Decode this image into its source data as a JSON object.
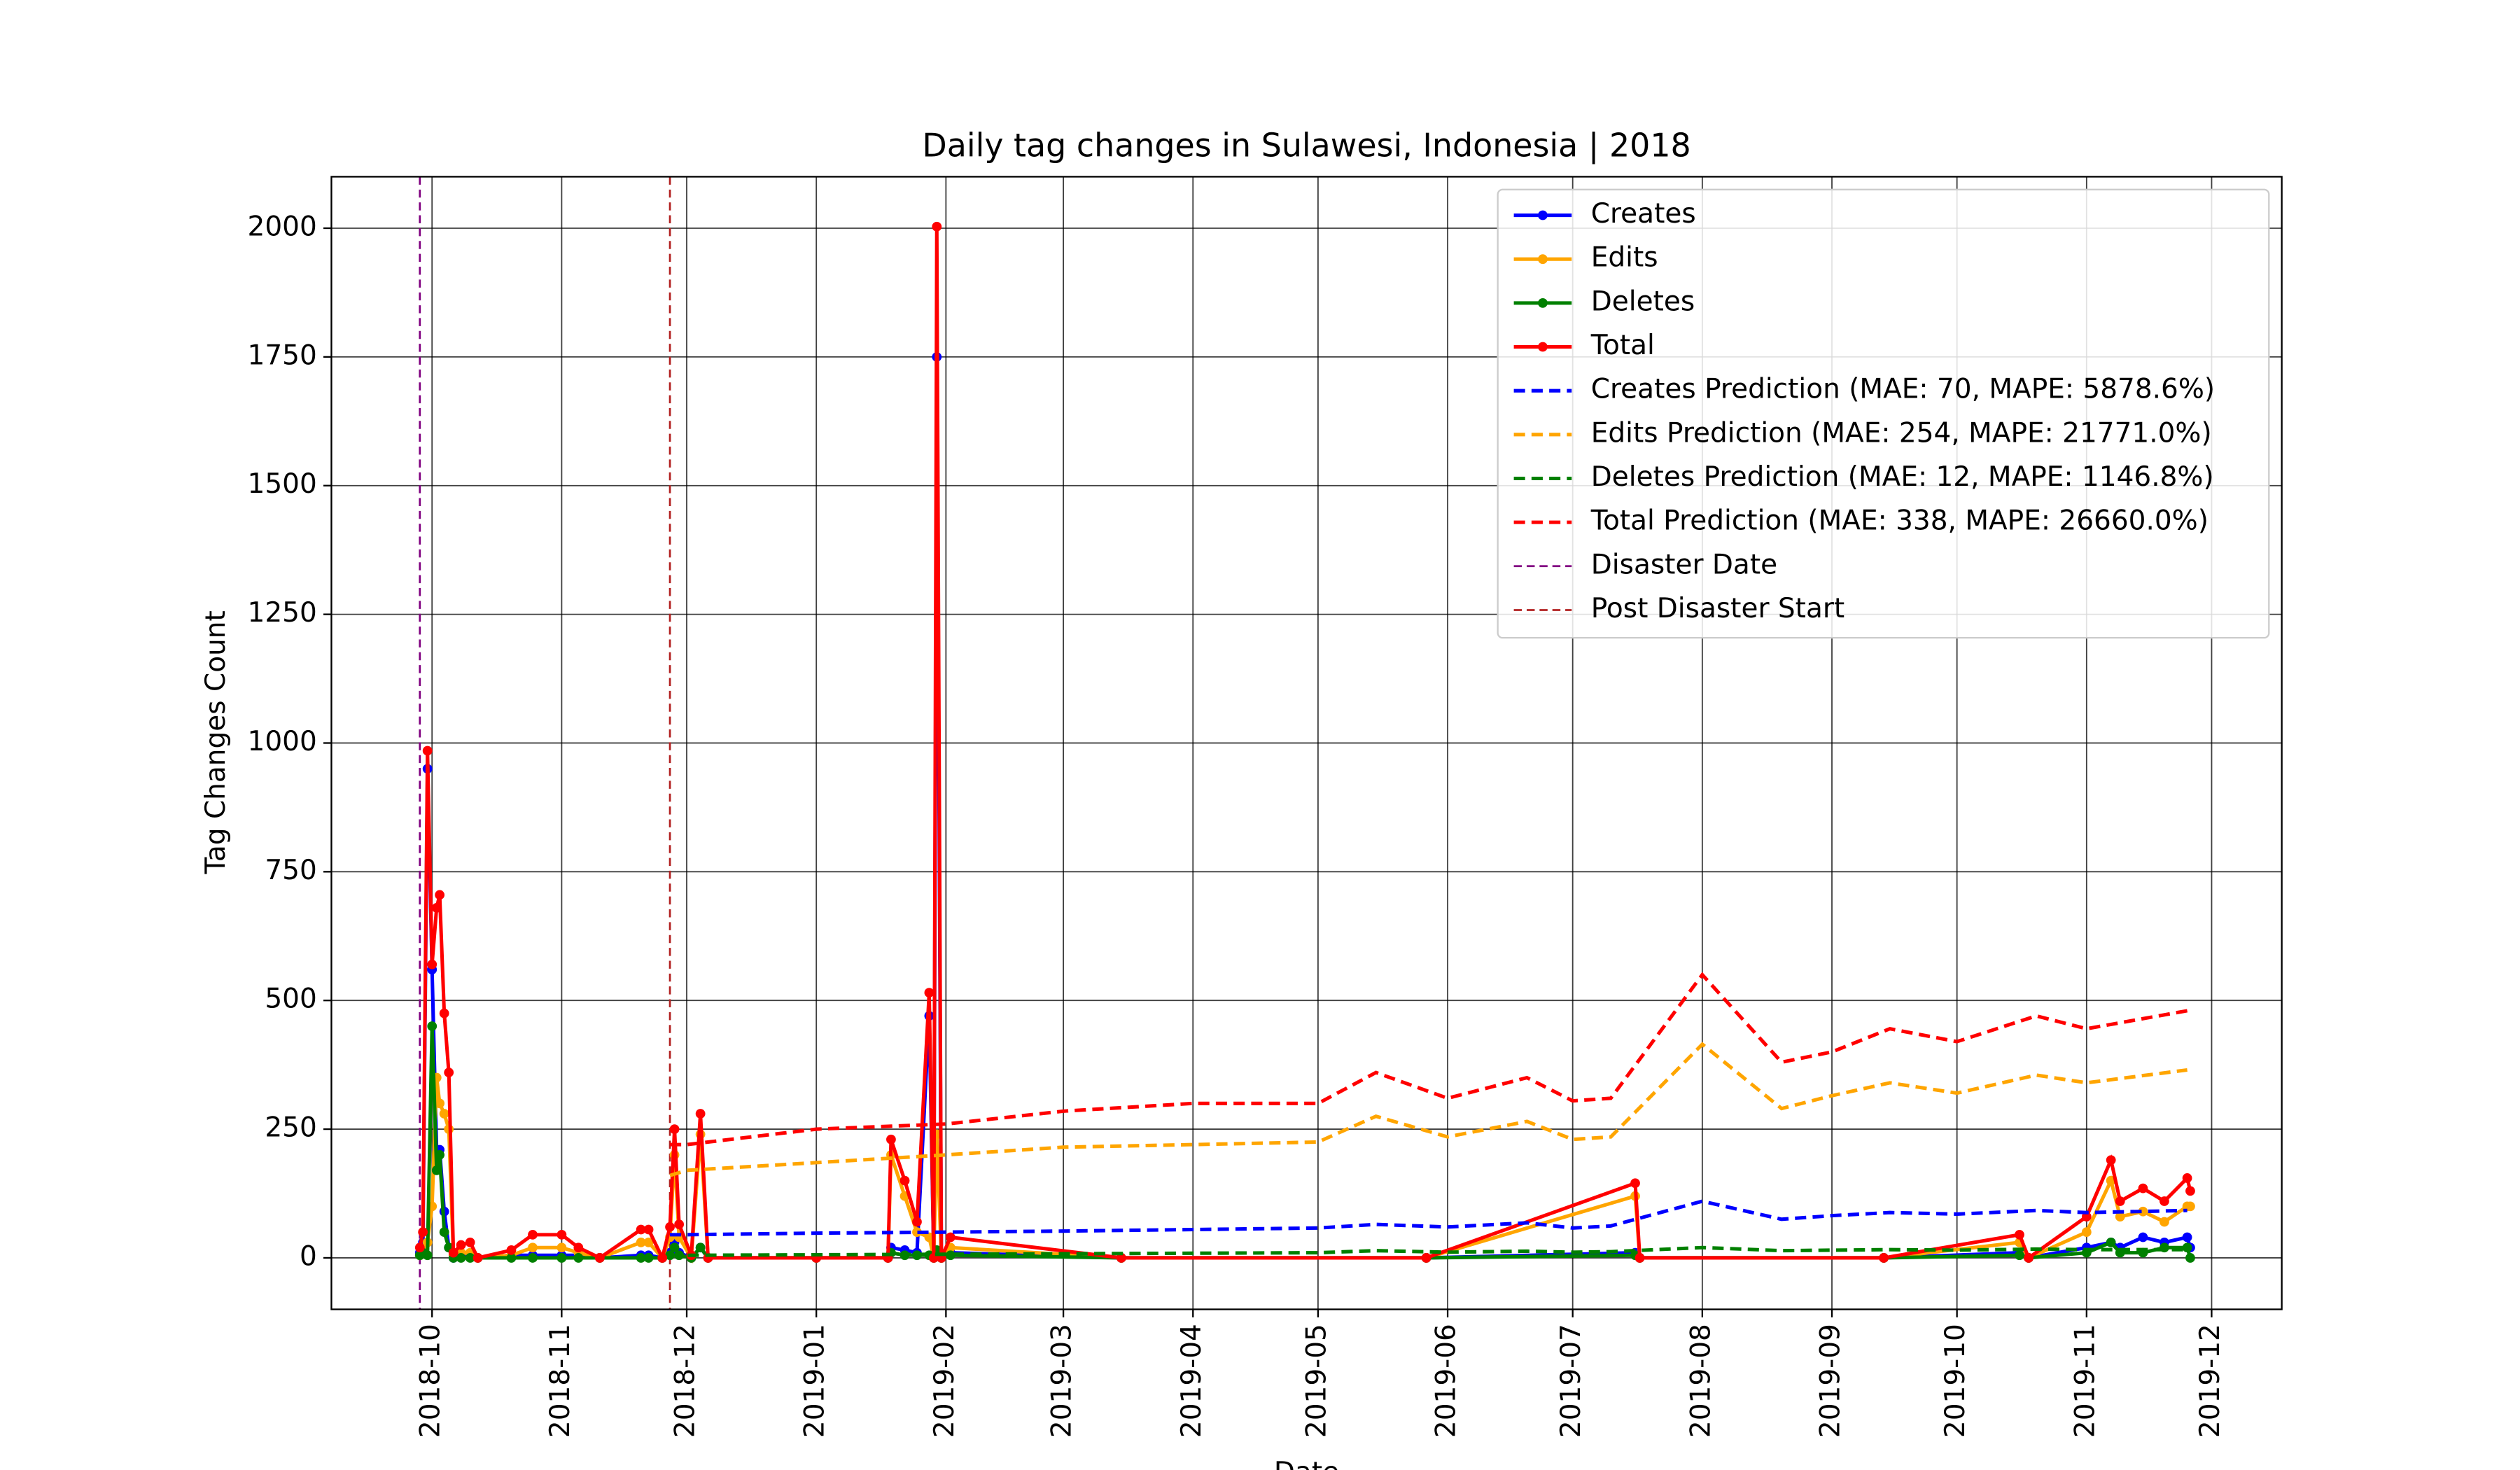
{
  "chart_data": {
    "type": "line",
    "title": "Daily tag changes in Sulawesi, Indonesia | 2018",
    "x_label": "Date",
    "y_label": "Tag Changes Count",
    "xlim": [
      2018.682,
      2019.961
    ],
    "ylim": [
      -100,
      2100
    ],
    "xticks": [
      {
        "value": 2018.748,
        "label": "2018-10"
      },
      {
        "value": 2018.833,
        "label": "2018-11"
      },
      {
        "value": 2018.915,
        "label": "2018-12"
      },
      {
        "value": 2019.0,
        "label": "2019-01"
      },
      {
        "value": 2019.085,
        "label": "2019-02"
      },
      {
        "value": 2019.162,
        "label": "2019-03"
      },
      {
        "value": 2019.247,
        "label": "2019-04"
      },
      {
        "value": 2019.329,
        "label": "2019-05"
      },
      {
        "value": 2019.414,
        "label": "2019-06"
      },
      {
        "value": 2019.496,
        "label": "2019-07"
      },
      {
        "value": 2019.581,
        "label": "2019-08"
      },
      {
        "value": 2019.666,
        "label": "2019-09"
      },
      {
        "value": 2019.748,
        "label": "2019-10"
      },
      {
        "value": 2019.833,
        "label": "2019-11"
      },
      {
        "value": 2019.915,
        "label": "2019-12"
      }
    ],
    "yticks": [
      0,
      250,
      500,
      750,
      1000,
      1250,
      1500,
      1750,
      2000
    ],
    "grid": true,
    "legend": "upper right",
    "series": [
      {
        "name": "Creates",
        "color": "#0000ff",
        "style": "solid",
        "x": [
          2018.74,
          2018.742,
          2018.745,
          2018.748,
          2018.751,
          2018.753,
          2018.756,
          2018.759,
          2018.762,
          2018.767,
          2018.773,
          2018.778,
          2018.8,
          2018.814,
          2018.833,
          2018.844,
          2018.858,
          2018.885,
          2018.89,
          2018.899,
          2018.904,
          2018.907,
          2018.91,
          2018.918,
          2018.924,
          2018.929,
          2019.0,
          2019.047,
          2019.049,
          2019.058,
          2019.066,
          2019.074,
          2019.077,
          2019.079,
          2019.082,
          2019.088,
          2019.2,
          2019.4,
          2019.537,
          2019.54,
          2019.7,
          2019.789,
          2019.795,
          2019.833,
          2019.849,
          2019.855,
          2019.87,
          2019.884,
          2019.899,
          2019.901
        ],
        "values": [
          10,
          30,
          950,
          560,
          210,
          210,
          90,
          20,
          0,
          5,
          5,
          0,
          5,
          5,
          5,
          5,
          0,
          5,
          5,
          0,
          10,
          30,
          10,
          0,
          20,
          0,
          0,
          0,
          20,
          15,
          10,
          470,
          0,
          1750,
          0,
          10,
          0,
          0,
          10,
          0,
          0,
          10,
          0,
          20,
          30,
          20,
          40,
          30,
          40,
          20
        ]
      },
      {
        "name": "Edits",
        "color": "#ffa500",
        "style": "solid",
        "x": [
          2018.74,
          2018.742,
          2018.745,
          2018.748,
          2018.751,
          2018.753,
          2018.756,
          2018.759,
          2018.762,
          2018.767,
          2018.773,
          2018.778,
          2018.8,
          2018.814,
          2018.833,
          2018.844,
          2018.858,
          2018.885,
          2018.89,
          2018.899,
          2018.904,
          2018.907,
          2018.91,
          2018.918,
          2018.924,
          2018.929,
          2019.0,
          2019.047,
          2019.049,
          2019.058,
          2019.066,
          2019.074,
          2019.077,
          2019.079,
          2019.082,
          2019.088,
          2019.2,
          2019.4,
          2019.537,
          2019.54,
          2019.7,
          2019.789,
          2019.795,
          2019.833,
          2019.849,
          2019.855,
          2019.87,
          2019.884,
          2019.899,
          2019.901
        ],
        "values": [
          5,
          10,
          30,
          100,
          350,
          300,
          280,
          250,
          5,
          10,
          10,
          0,
          5,
          20,
          20,
          10,
          0,
          30,
          30,
          0,
          40,
          200,
          40,
          0,
          240,
          0,
          0,
          0,
          200,
          120,
          50,
          40,
          0,
          240,
          0,
          20,
          0,
          0,
          120,
          0,
          0,
          30,
          0,
          50,
          150,
          80,
          90,
          70,
          100,
          100
        ]
      },
      {
        "name": "Deletes",
        "color": "#008000",
        "style": "solid",
        "x": [
          2018.74,
          2018.742,
          2018.745,
          2018.748,
          2018.751,
          2018.753,
          2018.756,
          2018.759,
          2018.762,
          2018.767,
          2018.773,
          2018.778,
          2018.8,
          2018.814,
          2018.833,
          2018.844,
          2018.858,
          2018.885,
          2018.89,
          2018.899,
          2018.904,
          2018.907,
          2018.91,
          2018.918,
          2018.924,
          2018.929,
          2019.0,
          2019.047,
          2019.049,
          2019.058,
          2019.066,
          2019.074,
          2019.077,
          2019.079,
          2019.082,
          2019.088,
          2019.2,
          2019.4,
          2019.537,
          2019.54,
          2019.7,
          2019.789,
          2019.795,
          2019.833,
          2019.849,
          2019.855,
          2019.87,
          2019.884,
          2019.899,
          2019.901
        ],
        "values": [
          5,
          10,
          5,
          450,
          170,
          200,
          50,
          20,
          0,
          0,
          0,
          0,
          0,
          0,
          0,
          0,
          0,
          0,
          0,
          0,
          5,
          20,
          5,
          0,
          20,
          0,
          0,
          0,
          10,
          5,
          5,
          5,
          0,
          15,
          0,
          5,
          0,
          0,
          5,
          0,
          0,
          5,
          0,
          10,
          30,
          10,
          10,
          20,
          20,
          0
        ]
      },
      {
        "name": "Total",
        "color": "#ff0000",
        "style": "solid",
        "x": [
          2018.74,
          2018.742,
          2018.745,
          2018.748,
          2018.751,
          2018.753,
          2018.756,
          2018.759,
          2018.762,
          2018.767,
          2018.773,
          2018.778,
          2018.8,
          2018.814,
          2018.833,
          2018.844,
          2018.858,
          2018.885,
          2018.89,
          2018.899,
          2018.904,
          2018.907,
          2018.91,
          2018.918,
          2018.924,
          2018.929,
          2019.0,
          2019.047,
          2019.049,
          2019.058,
          2019.066,
          2019.074,
          2019.077,
          2019.079,
          2019.082,
          2019.088,
          2019.2,
          2019.4,
          2019.537,
          2019.54,
          2019.7,
          2019.789,
          2019.795,
          2019.833,
          2019.849,
          2019.855,
          2019.87,
          2019.884,
          2019.899,
          2019.901
        ],
        "values": [
          20,
          50,
          985,
          570,
          680,
          705,
          475,
          360,
          10,
          25,
          30,
          0,
          15,
          45,
          45,
          20,
          0,
          55,
          55,
          0,
          60,
          250,
          65,
          5,
          280,
          0,
          0,
          0,
          230,
          150,
          70,
          515,
          0,
          2003,
          0,
          40,
          0,
          0,
          145,
          0,
          0,
          45,
          0,
          80,
          190,
          110,
          135,
          110,
          155,
          130
        ]
      },
      {
        "name": "Creates Prediction (MAE: 70, MAPE: 5878.6%)",
        "color": "#0000ff",
        "style": "dashed",
        "x": [
          2018.904,
          2018.915,
          2019.0,
          2019.085,
          2019.162,
          2019.247,
          2019.329,
          2019.367,
          2019.414,
          2019.466,
          2019.496,
          2019.521,
          2019.581,
          2019.633,
          2019.666,
          2019.704,
          2019.748,
          2019.8,
          2019.833,
          2019.899
        ],
        "values": [
          45,
          45,
          48,
          50,
          52,
          55,
          58,
          65,
          60,
          68,
          58,
          62,
          110,
          75,
          82,
          88,
          85,
          92,
          88,
          92
        ]
      },
      {
        "name": "Edits Prediction (MAE: 254, MAPE: 21771.0%)",
        "color": "#ffa500",
        "style": "dashed",
        "x": [
          2018.904,
          2018.915,
          2019.0,
          2019.085,
          2019.162,
          2019.247,
          2019.329,
          2019.367,
          2019.414,
          2019.466,
          2019.496,
          2019.521,
          2019.581,
          2019.633,
          2019.666,
          2019.704,
          2019.748,
          2019.8,
          2019.833,
          2019.899
        ],
        "values": [
          160,
          170,
          185,
          200,
          215,
          220,
          225,
          275,
          235,
          265,
          230,
          235,
          415,
          290,
          315,
          340,
          320,
          355,
          340,
          365
        ]
      },
      {
        "name": "Deletes Prediction (MAE: 12, MAPE: 1146.8%)",
        "color": "#008000",
        "style": "dashed",
        "x": [
          2018.904,
          2018.915,
          2019.0,
          2019.085,
          2019.162,
          2019.247,
          2019.329,
          2019.367,
          2019.414,
          2019.466,
          2019.496,
          2019.521,
          2019.581,
          2019.633,
          2019.666,
          2019.704,
          2019.748,
          2019.8,
          2019.833,
          2019.899
        ],
        "values": [
          5,
          5,
          6,
          7,
          8,
          9,
          10,
          14,
          11,
          13,
          11,
          12,
          20,
          14,
          15,
          16,
          15,
          17,
          16,
          16
        ]
      },
      {
        "name": "Total Prediction (MAE: 338, MAPE: 26660.0%)",
        "color": "#ff0000",
        "style": "dashed",
        "x": [
          2018.904,
          2018.915,
          2019.0,
          2019.085,
          2019.162,
          2019.247,
          2019.329,
          2019.367,
          2019.414,
          2019.466,
          2019.496,
          2019.521,
          2019.581,
          2019.633,
          2019.666,
          2019.704,
          2019.748,
          2019.8,
          2019.833,
          2019.899
        ],
        "values": [
          220,
          220,
          250,
          260,
          285,
          300,
          300,
          360,
          310,
          350,
          305,
          310,
          550,
          380,
          400,
          445,
          420,
          470,
          445,
          480
        ]
      }
    ],
    "vlines": [
      {
        "name": "Disaster Date",
        "x": 2018.74,
        "color": "#800080"
      },
      {
        "name": "Post Disaster Start",
        "x": 2018.904,
        "color": "#b22222"
      }
    ]
  }
}
